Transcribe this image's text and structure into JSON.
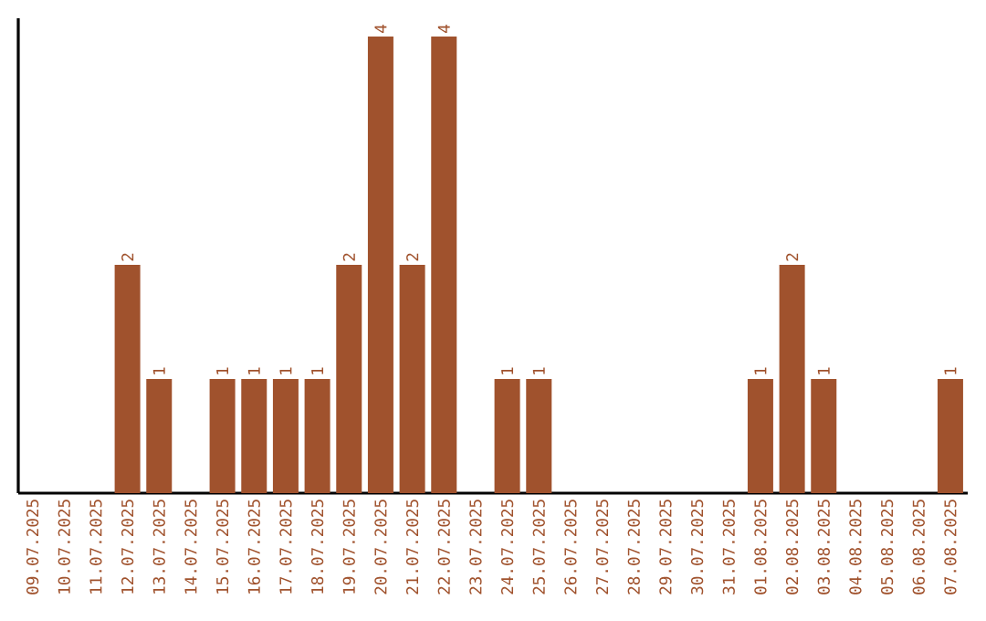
{
  "chart_data": {
    "type": "bar",
    "color": "#a0522d",
    "categories": [
      "09.07.2025",
      "10.07.2025",
      "11.07.2025",
      "12.07.2025",
      "13.07.2025",
      "14.07.2025",
      "15.07.2025",
      "16.07.2025",
      "17.07.2025",
      "18.07.2025",
      "19.07.2025",
      "20.07.2025",
      "21.07.2025",
      "22.07.2025",
      "23.07.2025",
      "24.07.2025",
      "25.07.2025",
      "26.07.2025",
      "27.07.2025",
      "28.07.2025",
      "29.07.2025",
      "30.07.2025",
      "31.07.2025",
      "01.08.2025",
      "02.08.2025",
      "03.08.2025",
      "04.08.2025",
      "05.08.2025",
      "06.08.2025",
      "07.08.2025"
    ],
    "values": [
      0,
      0,
      0,
      2,
      1,
      0,
      1,
      1,
      1,
      1,
      2,
      4,
      2,
      4,
      0,
      1,
      1,
      0,
      0,
      0,
      0,
      0,
      0,
      1,
      2,
      1,
      0,
      0,
      0,
      1
    ],
    "value_labels": [
      null,
      null,
      null,
      "2",
      "1",
      null,
      "1",
      "1",
      "1",
      "1",
      "2",
      "4",
      "2",
      "4",
      null,
      "1",
      "1",
      null,
      null,
      null,
      null,
      null,
      null,
      "1",
      "2",
      "1",
      null,
      null,
      null,
      "1"
    ],
    "grid": false
  }
}
